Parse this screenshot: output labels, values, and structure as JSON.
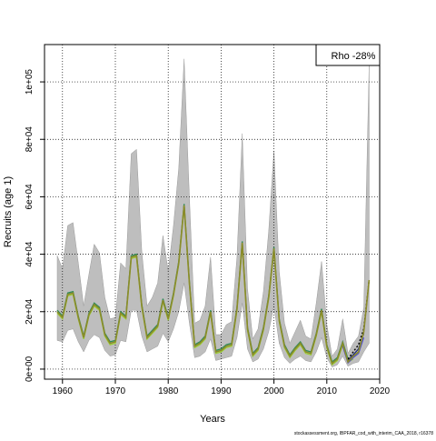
{
  "chart_data": {
    "type": "line",
    "xlabel": "Years",
    "ylabel": "Recruits (age 1)",
    "xlim": [
      1956.6,
      2020
    ],
    "ylim": [
      -3500,
      113000
    ],
    "x_ticks": [
      1960,
      1970,
      1980,
      1990,
      2000,
      2010,
      2020
    ],
    "x_tick_labels": [
      "1960",
      "1970",
      "1980",
      "1990",
      "2000",
      "2010",
      "2020"
    ],
    "y_ticks": [
      0,
      20000,
      40000,
      60000,
      80000,
      100000
    ],
    "y_tick_labels": [
      "0e+00",
      "2e+04",
      "4e+04",
      "6e+04",
      "8e+04",
      "1e+05"
    ],
    "grid": true,
    "legend_position": "top-right",
    "legend_text": "Rho -28%",
    "credit": "stockassessment.org, IBPFAR_cod_with_interim_CAA_2018, r16378",
    "band_color": "#bebebe",
    "estimate_color": "#8b8b2a",
    "peel_colors": [
      "#2e8b57",
      "#9acd32",
      "#4f4fd6",
      "#1e2a78",
      "#000000"
    ],
    "years": [
      1959,
      1960,
      1961,
      1962,
      1963,
      1964,
      1965,
      1966,
      1967,
      1968,
      1969,
      1970,
      1971,
      1972,
      1973,
      1974,
      1975,
      1976,
      1977,
      1978,
      1979,
      1980,
      1981,
      1982,
      1983,
      1984,
      1985,
      1986,
      1987,
      1988,
      1989,
      1990,
      1991,
      1992,
      1993,
      1994,
      1995,
      1996,
      1997,
      1998,
      1999,
      2000,
      2001,
      2002,
      2003,
      2004,
      2005,
      2006,
      2007,
      2008,
      2009,
      2010,
      2011,
      2012,
      2013,
      2014,
      2015,
      2016,
      2017,
      2018
    ],
    "estimate": [
      20000,
      18000,
      26000,
      26500,
      18000,
      11000,
      19000,
      22500,
      21000,
      12000,
      9000,
      9500,
      19500,
      18000,
      39000,
      39500,
      22000,
      11000,
      13000,
      15000,
      24000,
      17500,
      26000,
      37000,
      57000,
      30000,
      8000,
      9000,
      11000,
      20000,
      6000,
      6500,
      8000,
      8500,
      21000,
      44000,
      14000,
      5000,
      7000,
      14000,
      25000,
      42000,
      17000,
      8000,
      4500,
      7000,
      9000,
      6000,
      5500,
      12000,
      20500,
      8000,
      2000,
      3500,
      9000,
      2500,
      4500,
      6000,
      13000,
      31000
    ],
    "upper": [
      39500,
      35000,
      50000,
      51000,
      37000,
      22000,
      33000,
      43500,
      40500,
      25000,
      17500,
      18000,
      37000,
      35000,
      75000,
      76500,
      41000,
      22000,
      25000,
      30000,
      46500,
      34000,
      50000,
      70000,
      108000,
      60000,
      16000,
      17000,
      22000,
      39000,
      12000,
      12000,
      15500,
      16500,
      39000,
      82000,
      28000,
      10500,
      14000,
      27000,
      48000,
      76000,
      34000,
      16000,
      9000,
      13000,
      17000,
      11500,
      10500,
      23000,
      37500,
      15500,
      4500,
      7000,
      17500,
      5500,
      9000,
      11500,
      21500,
      106000
    ],
    "lower": [
      10000,
      9500,
      13500,
      14000,
      9500,
      6000,
      10000,
      12000,
      11000,
      6500,
      4500,
      5000,
      10000,
      9500,
      20500,
      20500,
      11500,
      6000,
      7000,
      8000,
      12500,
      9500,
      14000,
      20000,
      30000,
      16000,
      4000,
      4500,
      6000,
      10500,
      3000,
      3500,
      4000,
      4500,
      11000,
      23000,
      7000,
      2500,
      3500,
      7000,
      13000,
      22000,
      9000,
      4000,
      2000,
      3500,
      4500,
      3000,
      2500,
      6000,
      11000,
      4000,
      700,
      1500,
      4500,
      1000,
      2000,
      2500,
      6000,
      9000
    ],
    "peels": [
      {
        "years": [
          1959,
          1960,
          1961,
          1962,
          1963,
          1964,
          1965,
          1966,
          1967,
          1968,
          1969,
          1970,
          1971,
          1972,
          1973,
          1974,
          1975,
          1976,
          1977,
          1978,
          1979,
          1980,
          1981,
          1982,
          1983,
          1984,
          1985,
          1986,
          1987,
          1988,
          1989,
          1990,
          1991,
          1992,
          1993,
          1994,
          1995,
          1996,
          1997,
          1998,
          1999,
          2000,
          2001,
          2002,
          2003,
          2004,
          2005,
          2006,
          2007,
          2008,
          2009,
          2010,
          2011,
          2012,
          2013,
          2014
        ],
        "values": [
          20500,
          18500,
          26500,
          27000,
          18500,
          11500,
          19500,
          23000,
          21500,
          12500,
          9500,
          10000,
          20000,
          18500,
          39500,
          40000,
          22500,
          11500,
          13500,
          15500,
          24500,
          18000,
          26500,
          37500,
          57500,
          30500,
          8500,
          9500,
          11500,
          20500,
          6500,
          7000,
          8500,
          9000,
          21500,
          44500,
          14500,
          5500,
          7500,
          14500,
          25500,
          42500,
          17500,
          8500,
          5000,
          7500,
          9500,
          6500,
          6000,
          12500,
          21000,
          8500,
          2500,
          4000,
          9500,
          3500
        ]
      },
      {
        "years": [
          1959,
          1960,
          1961,
          1962,
          1963,
          1964,
          1965,
          1966,
          1967,
          1968,
          1969,
          1970,
          1971,
          1972,
          1973,
          1974,
          1975,
          1976,
          1977,
          1978,
          1979,
          1980,
          1981,
          1982,
          1983,
          1984,
          1985,
          1986,
          1987,
          1988,
          1989,
          1990,
          1991,
          1992,
          1993,
          1994,
          1995,
          1996,
          1997,
          1998,
          1999,
          2000,
          2001,
          2002,
          2003,
          2004,
          2005,
          2006,
          2007,
          2008,
          2009,
          2010,
          2011,
          2012,
          2013,
          2014,
          2015
        ],
        "values": [
          19500,
          17500,
          25500,
          26000,
          17500,
          10500,
          18500,
          22000,
          20500,
          11500,
          8500,
          9000,
          19000,
          17500,
          38500,
          39000,
          21500,
          10500,
          12500,
          14500,
          23500,
          17000,
          25500,
          36500,
          56500,
          29500,
          7500,
          8500,
          10500,
          19500,
          5500,
          6000,
          7500,
          8000,
          20500,
          43500,
          13500,
          4500,
          6500,
          13500,
          24500,
          41500,
          16500,
          7500,
          4000,
          6500,
          8500,
          5500,
          5000,
          11500,
          20000,
          7500,
          1500,
          3000,
          8500,
          2500,
          3500
        ]
      },
      {
        "years": [
          2013,
          2014,
          2015,
          2016,
          2017
        ],
        "values": [
          8000,
          2200,
          4000,
          5500,
          11000
        ]
      },
      {
        "years": [
          2014,
          2015,
          2016,
          2017
        ],
        "values": [
          3000,
          5000,
          7000,
          12500
        ]
      },
      {
        "years": [
          2014,
          2015,
          2016,
          2017,
          2018
        ],
        "values": [
          3500,
          6000,
          8500,
          14000,
          31000
        ]
      }
    ]
  }
}
